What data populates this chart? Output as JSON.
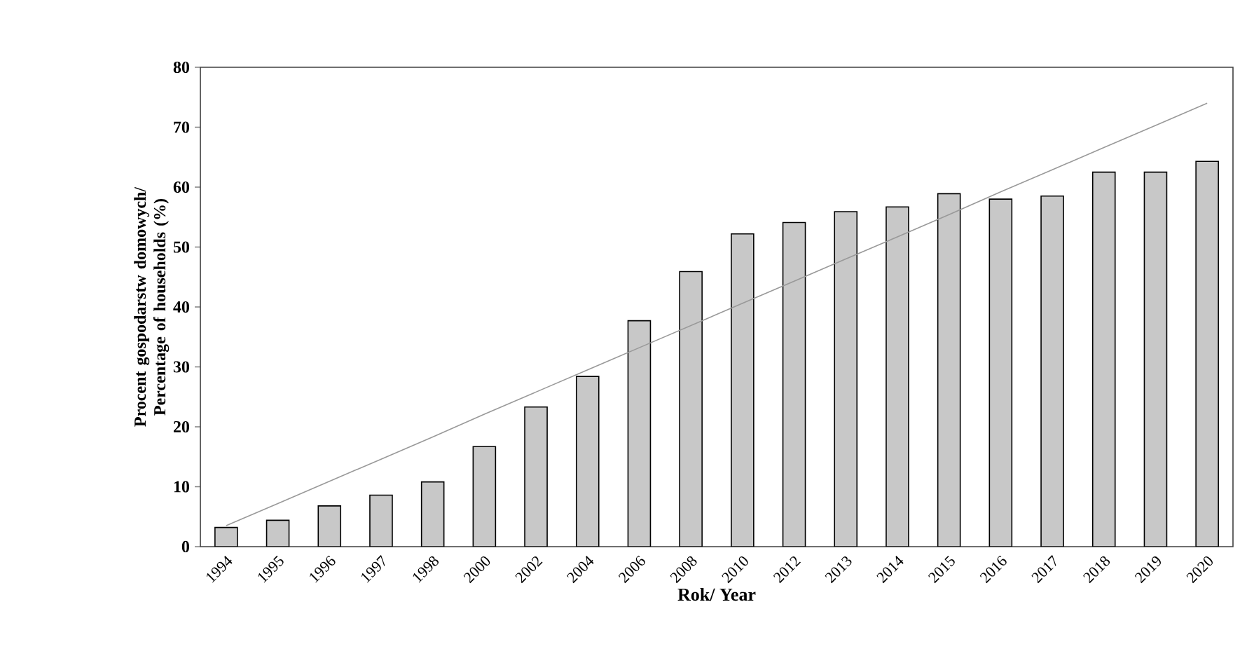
{
  "chart_data": {
    "type": "bar",
    "xlabel": "Rok/ Year",
    "ylabel": "Procent gospodarstw domowych/ Percentage of households (%)",
    "categories": [
      "1994",
      "1995",
      "1996",
      "1997",
      "1998",
      "2000",
      "2002",
      "2004",
      "2006",
      "2008",
      "2010",
      "2012",
      "2013",
      "2014",
      "2015",
      "2016",
      "2017",
      "2018",
      "2019",
      "2020"
    ],
    "series": [
      {
        "type": "bar",
        "color": "#c8c8c8",
        "values": [
          3.2,
          4.4,
          6.8,
          8.6,
          10.8,
          16.7,
          23.3,
          28.4,
          37.7,
          45.9,
          52.2,
          54.1,
          55.9,
          56.7,
          58.9,
          58.0,
          58.5,
          62.5,
          62.5,
          64.3
        ]
      },
      {
        "type": "line",
        "color": "#999999",
        "values": [
          3.5,
          7.2,
          10.9,
          14.6,
          18.3,
          22.1,
          25.8,
          29.5,
          33.2,
          36.9,
          40.6,
          44.3,
          48.0,
          51.7,
          55.4,
          59.2,
          62.9,
          66.6,
          70.3,
          74.0
        ]
      }
    ],
    "ylim": [
      0,
      80
    ],
    "yticks": [
      0,
      10,
      20,
      30,
      40,
      50,
      60,
      70,
      80
    ],
    "grid": false,
    "marker": "none",
    "line_style": "solid"
  }
}
